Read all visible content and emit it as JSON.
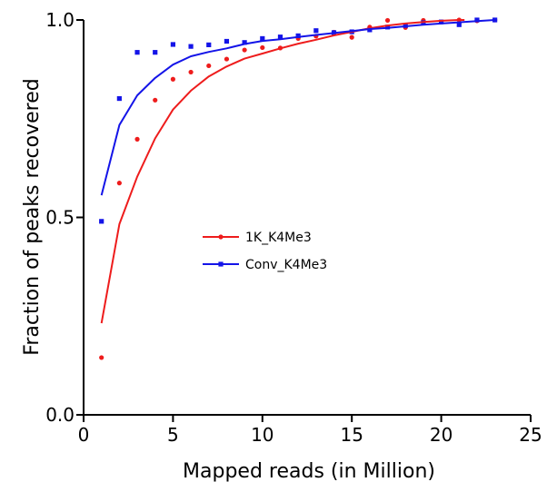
{
  "chart_data": {
    "type": "scatter",
    "title": "",
    "xlabel": "Mapped reads (in Million)",
    "ylabel": "Fraction of peaks recovered",
    "xlim": [
      0,
      25
    ],
    "ylim": [
      0,
      1
    ],
    "xticks": [
      0,
      5,
      10,
      15,
      20,
      25
    ],
    "xtick_labels": [
      "0",
      "5",
      "10",
      "15",
      "20",
      "25"
    ],
    "yticks": [
      0,
      0.5,
      1
    ],
    "ytick_labels": [
      "0.0",
      "0.5",
      "1.0"
    ],
    "grid": false,
    "legend_position": "center",
    "series": [
      {
        "name": "1K_K4Me3",
        "color": "#ee1c1c",
        "marker": "circle",
        "x": [
          1,
          2,
          3,
          4,
          5,
          6,
          7,
          8,
          9,
          10,
          11,
          12,
          13,
          14,
          15,
          16,
          17,
          18,
          19,
          20,
          21,
          22,
          23
        ],
        "y": [
          0.145,
          0.587,
          0.698,
          0.797,
          0.85,
          0.868,
          0.884,
          0.901,
          0.924,
          0.93,
          0.929,
          0.953,
          0.959,
          0.969,
          0.956,
          0.982,
          0.999,
          0.981,
          0.999,
          0.995,
          1.0,
          0.998,
          1.0
        ],
        "fit_x": [
          1,
          2,
          3,
          4,
          5,
          6,
          7,
          8,
          9,
          10,
          11,
          12,
          13,
          14,
          15,
          16,
          17,
          18,
          19,
          20,
          21,
          21.3
        ],
        "fit_y": [
          0.232,
          0.483,
          0.603,
          0.7,
          0.773,
          0.821,
          0.857,
          0.882,
          0.902,
          0.915,
          0.928,
          0.94,
          0.95,
          0.961,
          0.97,
          0.979,
          0.986,
          0.991,
          0.995,
          0.998,
          1.0,
          1.0
        ]
      },
      {
        "name": "Conv_K4Me3",
        "color": "#1414e8",
        "marker": "square",
        "x": [
          1,
          2,
          3,
          4,
          5,
          6,
          7,
          8,
          9,
          10,
          11,
          12,
          13,
          14,
          15,
          16,
          17,
          18,
          19,
          20,
          21,
          22,
          23
        ],
        "y": [
          0.49,
          0.801,
          0.918,
          0.918,
          0.938,
          0.933,
          0.937,
          0.946,
          0.943,
          0.953,
          0.957,
          0.96,
          0.973,
          0.968,
          0.97,
          0.975,
          0.982,
          0.986,
          0.993,
          0.995,
          0.988,
          1.0,
          1.0
        ],
        "fit_x": [
          1,
          2,
          3,
          4,
          5,
          6,
          7,
          8,
          9,
          10,
          11,
          12,
          13,
          14,
          15,
          16,
          17,
          18,
          19,
          20,
          21,
          22,
          23
        ],
        "fit_y": [
          0.556,
          0.734,
          0.809,
          0.853,
          0.887,
          0.908,
          0.919,
          0.928,
          0.939,
          0.947,
          0.951,
          0.957,
          0.962,
          0.967,
          0.972,
          0.977,
          0.98,
          0.984,
          0.988,
          0.991,
          0.994,
          0.997,
          1.0
        ]
      }
    ]
  }
}
